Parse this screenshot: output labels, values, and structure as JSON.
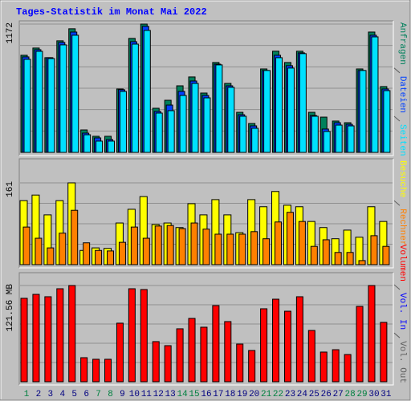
{
  "chart_data": [
    {
      "type": "bar",
      "title": "Tages-Statistik im Monat Mai 2022",
      "ylim": [
        0,
        1172
      ],
      "yticks": [
        1172
      ],
      "series": [
        {
          "name": "Anfragen",
          "color": "#00805c",
          "values": [
            887,
            953,
            865,
            1019,
            1129,
            205,
            147,
            147,
            579,
            1041,
            1172,
            403,
            476,
            608,
            689,
            542,
            821,
            630,
            366,
            264,
            762,
            924,
            821,
            924,
            366,
            322,
            286,
            271,
            762,
            1099,
            601
          ]
        },
        {
          "name": "Dateien",
          "color": "#0040ff",
          "values": [
            872,
            938,
            865,
            1004,
            1099,
            176,
            132,
            117,
            572,
            1011,
            1151,
            374,
            432,
            557,
            652,
            520,
            806,
            608,
            344,
            242,
            748,
            887,
            792,
            909,
            337,
            213,
            271,
            256,
            748,
            1070,
            579
          ]
        },
        {
          "name": "Seiten",
          "color": "#00e0ff",
          "values": [
            850,
            923,
            857,
            982,
            1070,
            161,
            103,
            103,
            557,
            989,
            1114,
            359,
            381,
            520,
            630,
            498,
            799,
            594,
            330,
            220,
            748,
            865,
            770,
            902,
            330,
            191,
            249,
            242,
            748,
            1055,
            564
          ]
        }
      ]
    },
    {
      "type": "bar",
      "ylim": [
        0,
        161
      ],
      "yticks": [
        161
      ],
      "series": [
        {
          "name": "Besuche",
          "color": "#ffff00",
          "values": [
            126,
            137,
            98,
            126,
            161,
            28,
            33,
            32,
            82,
            109,
            134,
            79,
            82,
            73,
            120,
            98,
            128,
            98,
            63,
            128,
            114,
            144,
            117,
            114,
            85,
            73,
            51,
            68,
            54,
            114,
            85
          ]
        },
        {
          "name": "Rechner",
          "color": "#ff8000",
          "values": [
            74,
            52,
            33,
            62,
            107,
            43,
            28,
            27,
            44,
            74,
            52,
            76,
            77,
            71,
            82,
            70,
            60,
            60,
            60,
            65,
            51,
            84,
            103,
            85,
            36,
            49,
            24,
            24,
            8,
            57,
            36
          ]
        }
      ]
    },
    {
      "type": "bar",
      "ylim": [
        0,
        121.56
      ],
      "yticks": [
        {
          "value": 121.56,
          "label": "121.56 MB"
        }
      ],
      "categories": [
        "1",
        "2",
        "3",
        "4",
        "5",
        "6",
        "7",
        "8",
        "9",
        "10",
        "11",
        "12",
        "13",
        "14",
        "15",
        "16",
        "17",
        "18",
        "19",
        "20",
        "21",
        "22",
        "23",
        "24",
        "25",
        "26",
        "27",
        "28",
        "29",
        "30",
        "31"
      ],
      "category_colors": [
        "#008040",
        "#000080",
        "#000080",
        "#000080",
        "#000080",
        "#000080",
        "#008040",
        "#008040",
        "#000080",
        "#000080",
        "#000080",
        "#000080",
        "#000080",
        "#008040",
        "#008040",
        "#000080",
        "#000080",
        "#000080",
        "#000080",
        "#000080",
        "#008040",
        "#008040",
        "#000080",
        "#000080",
        "#000080",
        "#000080",
        "#000080",
        "#008040",
        "#008040",
        "#000080",
        "#000080"
      ],
      "series": [
        {
          "name": "Volumen",
          "color": "#ff0000",
          "values": [
            105.4,
            110.4,
            107.4,
            117.5,
            121.56,
            30.4,
            28.4,
            28.4,
            74.0,
            117.5,
            116.5,
            50.7,
            45.6,
            66.9,
            80.0,
            68.9,
            96.2,
            76.0,
            47.6,
            39.5,
            92.2,
            104.3,
            89.1,
            107.4,
            64.8,
            37.5,
            40.5,
            34.4,
            95.2,
            121.56,
            75.0
          ]
        },
        {
          "name": "Vol. In",
          "color": "#0000ff"
        },
        {
          "name": "Vol. Out",
          "color": "#606060"
        }
      ]
    }
  ]
}
